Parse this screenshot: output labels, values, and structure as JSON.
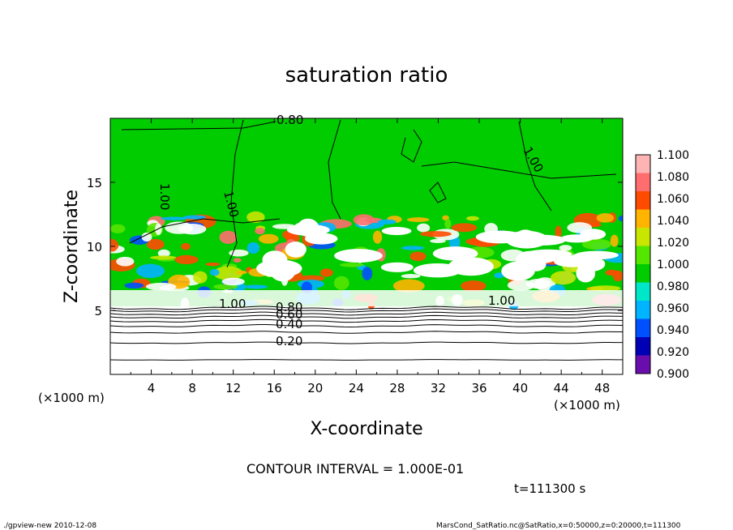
{
  "chart_data": {
    "type": "heatmap",
    "title": "saturation ratio",
    "xlabel": "X-coordinate",
    "ylabel": "Z-coordinate",
    "x_unit_left": "(×1000 m)",
    "x_unit_right": "(×1000 m)",
    "xlim": [
      0,
      50
    ],
    "ylim": [
      0,
      20
    ],
    "x_ticks": [
      "4",
      "8",
      "12",
      "16",
      "20",
      "24",
      "28",
      "32",
      "36",
      "40",
      "44",
      "48"
    ],
    "y_ticks": [
      "5",
      "10",
      "15"
    ],
    "colorbar": {
      "levels": [
        "0.900",
        "0.920",
        "0.940",
        "0.960",
        "0.980",
        "1.000",
        "1.020",
        "1.040",
        "1.060",
        "1.080",
        "1.100"
      ],
      "colors": [
        "#6a0dad",
        "#0000b4",
        "#0050ff",
        "#00b4ff",
        "#00e6c8",
        "#00cc00",
        "#55e600",
        "#c8e600",
        "#ffb400",
        "#ff4b00",
        "#ff6e6e",
        "#ffb4b4"
      ]
    },
    "contour_labels": [
      "0.80",
      "1.00",
      "1.00",
      "1.00",
      "1.00",
      "1.00",
      "0.80",
      "0.60",
      "0.40",
      "0.20"
    ],
    "contour_interval_text": "CONTOUR INTERVAL = 1.000E-01",
    "time_text": "t=111300 s"
  },
  "footer": {
    "left": "./gpview-new   2010-12-08",
    "right": "MarsCond_SatRatio.nc@SatRatio,x=0:50000,z=0:20000,t=111300"
  }
}
